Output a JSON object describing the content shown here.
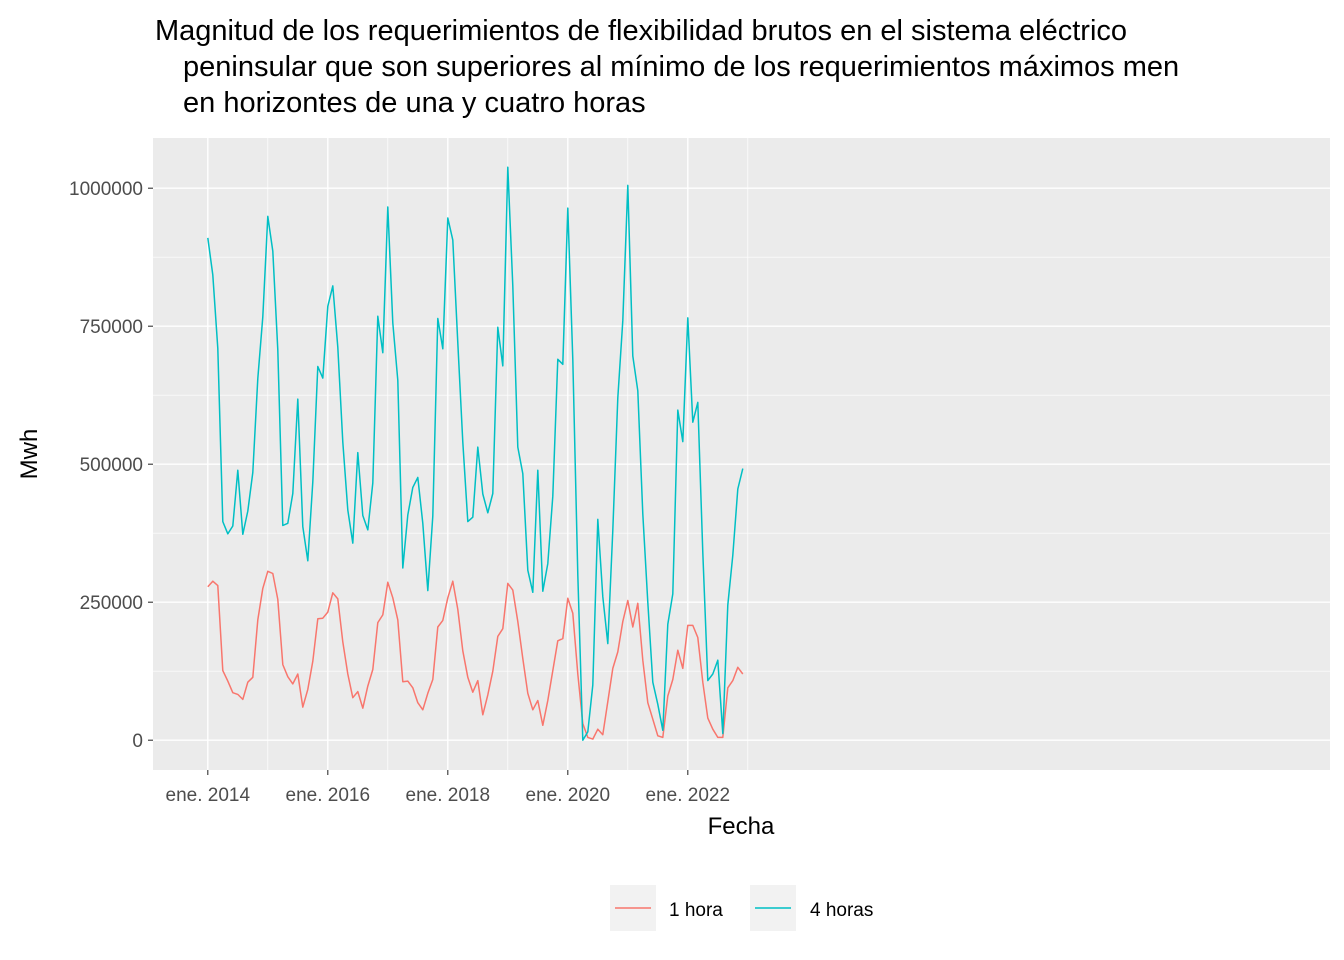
{
  "chart_data": {
    "type": "line",
    "title_lines": [
      "Magnitud de los requerimientos de flexibilidad brutos en el sistema eléctrico",
      "peninsular que son superiores al mínimo de los requerimientos máximos men",
      "en horizontes de una y cuatro horas"
    ],
    "xlabel": "Fecha",
    "ylabel": "Mwh",
    "ylim": [
      -45000,
      1085000
    ],
    "y_ticks": [
      0,
      250000,
      500000,
      750000,
      1000000
    ],
    "y_tick_labels": [
      "0",
      "250000",
      "500000",
      "750000",
      "1000000"
    ],
    "x_ticks": [
      "2014-01",
      "2016-01",
      "2018-01",
      "2020-01",
      "2022-01"
    ],
    "x_tick_labels": [
      "ene. 2014",
      "ene. 2016",
      "ene. 2018",
      "ene. 2020",
      "ene. 2022"
    ],
    "x_start": "2014-01",
    "grid": true,
    "legend_position": "bottom",
    "series": [
      {
        "name": "1 hora",
        "color": "#F8766D",
        "values": [
          278000,
          288000,
          280000,
          126000,
          107000,
          86000,
          83000,
          74000,
          105000,
          114000,
          218000,
          275000,
          306000,
          302000,
          255000,
          137000,
          115000,
          102000,
          120000,
          60000,
          92000,
          143000,
          220000,
          221000,
          232000,
          267000,
          256000,
          178000,
          120000,
          77000,
          88000,
          58000,
          98000,
          128000,
          213000,
          227000,
          286000,
          258000,
          218000,
          106000,
          107000,
          95000,
          68000,
          55000,
          85000,
          110000,
          205000,
          217000,
          258000,
          288000,
          237000,
          162000,
          114000,
          87000,
          108000,
          46000,
          82000,
          125000,
          188000,
          202000,
          284000,
          272000,
          215000,
          148000,
          85000,
          55000,
          72000,
          27000,
          72000,
          126000,
          180000,
          184000,
          257000,
          230000,
          120000,
          30000,
          5000,
          2000,
          20000,
          10000,
          70000,
          130000,
          160000,
          215000,
          253000,
          205000,
          248000,
          145000,
          68000,
          38000,
          8000,
          5000,
          80000,
          110000,
          163000,
          130000,
          208000,
          208000,
          186000,
          105000,
          40000,
          20000,
          5000,
          5000,
          95000,
          108000,
          132000,
          120000
        ]
      },
      {
        "name": "4 horas",
        "color": "#00BFC4",
        "values": [
          910000,
          843000,
          710000,
          396000,
          374000,
          388000,
          489000,
          373000,
          415000,
          485000,
          655000,
          767000,
          949000,
          886000,
          707000,
          389000,
          393000,
          447000,
          618000,
          387000,
          325000,
          468000,
          677000,
          656000,
          786000,
          823000,
          712000,
          540000,
          417000,
          357000,
          521000,
          407000,
          381000,
          466000,
          768000,
          702000,
          966000,
          756000,
          652000,
          312000,
          408000,
          458000,
          476000,
          393000,
          271000,
          406000,
          764000,
          709000,
          946000,
          906000,
          720000,
          540000,
          396000,
          404000,
          531000,
          446000,
          412000,
          447000,
          748000,
          678000,
          1038000,
          823000,
          531000,
          483000,
          308000,
          268000,
          489000,
          270000,
          320000,
          442000,
          690000,
          681000,
          964000,
          690000,
          300000,
          0,
          15000,
          100000,
          400000,
          260000,
          175000,
          380000,
          620000,
          760000,
          1005000,
          696000,
          633000,
          410000,
          250000,
          105000,
          65000,
          18000,
          210000,
          265000,
          598000,
          541000,
          765000,
          576000,
          612000,
          340000,
          108000,
          120000,
          145000,
          12000,
          245000,
          335000,
          455000,
          492000
        ]
      }
    ]
  }
}
